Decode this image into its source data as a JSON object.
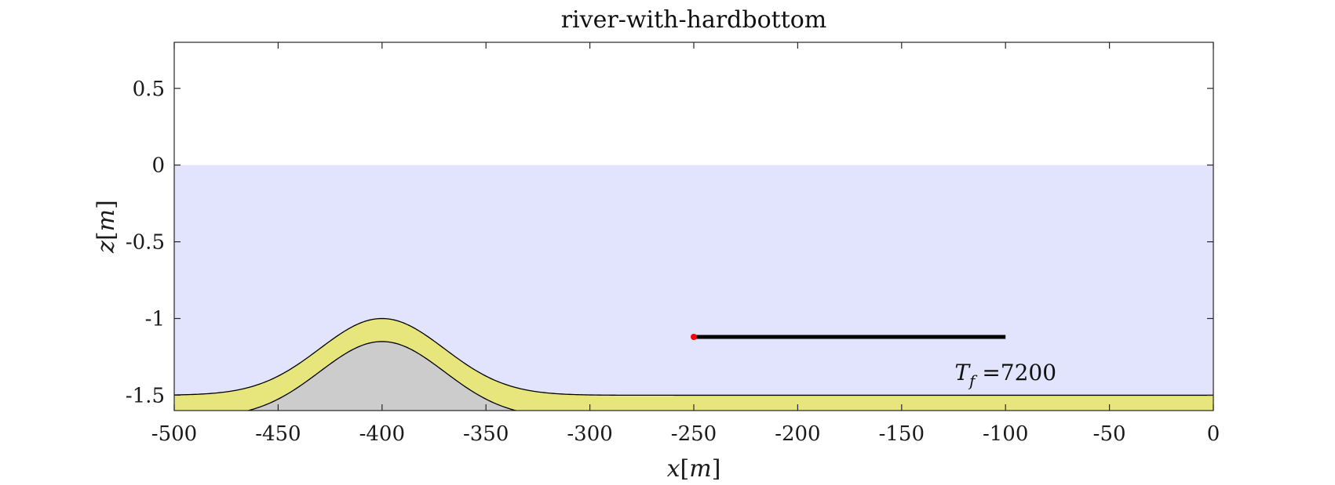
{
  "chart_data": {
    "type": "area",
    "title": "river-with-hardbottom",
    "xlabel": "x[m]",
    "ylabel": "z[m]",
    "xlim": [
      -500,
      0
    ],
    "ylim": [
      -1.6,
      0.8
    ],
    "x_ticks": [
      -500,
      -450,
      -400,
      -350,
      -300,
      -250,
      -200,
      -150,
      -100,
      -50,
      0
    ],
    "x_tick_labels": [
      "-500",
      "-450",
      "-400",
      "-350",
      "-300",
      "-250",
      "-200",
      "-150",
      "-100",
      "-50",
      "0"
    ],
    "y_ticks": [
      -1.5,
      -1,
      -0.5,
      0,
      0.5
    ],
    "y_tick_labels": [
      "-1.5",
      "-1",
      "-0.5",
      "0",
      "0.5"
    ],
    "grid": false,
    "water_surface_z": 0,
    "hump": {
      "center_x": -400,
      "sigma": 30,
      "bed_base_z": -1.5,
      "bed_peak_z": -1.0,
      "hard_base_z": -1.65,
      "hard_peak_z": -1.15
    },
    "marker_line": {
      "x": [
        -250,
        -100
      ],
      "z": -1.12
    },
    "marker_point": {
      "x": -250,
      "z": -1.12
    },
    "annotation": {
      "text": "T_f =7200",
      "x": -100,
      "z": -1.35
    },
    "colors": {
      "water": "#e2e3fd",
      "sediment": "#e6e67c",
      "hard_bottom": "#cccccc",
      "outline": "#000000",
      "marker_line": "#000000",
      "marker_point": "#ff0000"
    }
  }
}
